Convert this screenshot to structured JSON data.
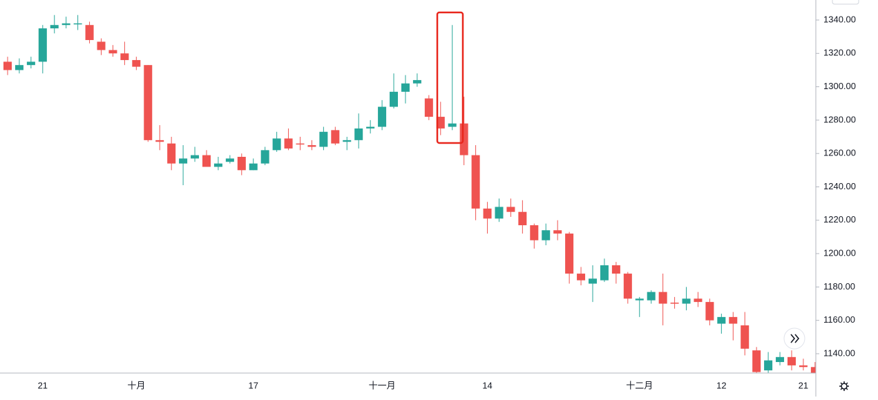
{
  "chart_data": {
    "type": "candlestick",
    "categories": [
      null,
      null,
      null,
      "21",
      null,
      null,
      null,
      null,
      null,
      null,
      null,
      "十月",
      null,
      null,
      null,
      null,
      null,
      null,
      null,
      null,
      null,
      "17",
      null,
      null,
      null,
      null,
      null,
      null,
      null,
      null,
      null,
      null,
      "十一月",
      null,
      null,
      null,
      null,
      null,
      null,
      null,
      null,
      "14",
      null,
      null,
      null,
      null,
      null,
      null,
      null,
      null,
      null,
      null,
      null,
      null,
      "十二月",
      null,
      null,
      null,
      null,
      null,
      null,
      "12",
      null,
      null,
      null,
      null,
      null,
      null,
      "21",
      null
    ],
    "open": [
      1315,
      1310,
      1313,
      1315,
      1335,
      1337,
      1337.5,
      1337,
      1327,
      1322,
      1320,
      1316,
      1313,
      1268,
      1266,
      1254,
      1257,
      1259,
      1252,
      1255,
      1258,
      1250,
      1254,
      1262,
      1269,
      1266,
      1265,
      1264,
      1274,
      1267,
      1268,
      1275,
      1276,
      1288,
      1297,
      1302,
      1293,
      1282,
      1276,
      1278,
      1259,
      1227,
      1221,
      1228,
      1225,
      1217,
      1208,
      1214,
      1212,
      1188,
      1182,
      1184,
      1193,
      1188,
      1172,
      1172,
      1177,
      1170.6,
      1170,
      1173,
      1171,
      1158,
      1162,
      1157,
      1142,
      1130,
      1135,
      1138,
      1133,
      1132
    ],
    "high": [
      1318,
      1317,
      1318,
      1337,
      1343,
      1342,
      1343,
      1339,
      1329,
      1325,
      1327,
      1318,
      1313,
      1277,
      1270,
      1265,
      1264,
      1262,
      1258,
      1259,
      1260,
      1257,
      1264,
      1273,
      1275,
      1270,
      1268,
      1276,
      1276,
      1270,
      1284,
      1280,
      1292,
      1308,
      1307,
      1308,
      1295,
      1291,
      1337,
      1294,
      1265,
      1231,
      1233,
      1233,
      1232,
      1218,
      1218,
      1220,
      1213,
      1192,
      1193,
      1197,
      1195,
      1189,
      1174,
      1178,
      1188,
      1174,
      1180,
      1177,
      1173,
      1164,
      1165,
      1165,
      1144,
      1141,
      1141,
      1142,
      1137,
      1135
    ],
    "low": [
      1307,
      1308,
      1311,
      1308,
      1332,
      1335,
      1334,
      1326,
      1319,
      1318,
      1313,
      1310,
      1267,
      1262,
      1250,
      1241,
      1255,
      1252,
      1250,
      1254,
      1247,
      1250,
      1253,
      1261,
      1262,
      1262,
      1262,
      1262,
      1265,
      1262,
      1263,
      1272,
      1274,
      1287,
      1290,
      1300,
      1280,
      1271,
      1274,
      1253,
      1220,
      1212,
      1219,
      1222,
      1212,
      1203,
      1205,
      1208,
      1182,
      1181,
      1171,
      1183,
      1182,
      1170,
      1162,
      1170,
      1157,
      1167,
      1166,
      1168,
      1157,
      1152,
      1148,
      1139,
      1125,
      1128,
      1133,
      1130,
      1130,
      1126
    ],
    "close": [
      1310,
      1313,
      1315,
      1335,
      1337,
      1338,
      1338,
      1328,
      1322,
      1320,
      1316,
      1312,
      1268,
      1267,
      1254,
      1257,
      1259,
      1252,
      1254,
      1257,
      1250,
      1254,
      1262,
      1269,
      1263,
      1265.5,
      1264,
      1273,
      1266,
      1268,
      1275,
      1276,
      1288,
      1297,
      1302,
      1304,
      1282,
      1275,
      1278,
      1259,
      1227,
      1221,
      1228,
      1225,
      1217,
      1208,
      1214,
      1212,
      1188,
      1184,
      1185,
      1193,
      1188,
      1173,
      1173,
      1177,
      1170,
      1170,
      1173,
      1171,
      1160,
      1162,
      1158,
      1143,
      1129,
      1136,
      1138,
      1133,
      1132,
      1128
    ],
    "up_color": "#26a69a",
    "down_color": "#ef5350",
    "ylim": [
      1128.4,
      1352
    ],
    "yticks": [
      {
        "value": 1140,
        "label": "1140.00"
      },
      {
        "value": 1160,
        "label": "1160.00"
      },
      {
        "value": 1180,
        "label": "1180.00"
      },
      {
        "value": 1200,
        "label": "1200.00"
      },
      {
        "value": 1220,
        "label": "1220.00"
      },
      {
        "value": 1240,
        "label": "1240.00"
      },
      {
        "value": 1260,
        "label": "1260.00"
      },
      {
        "value": 1280,
        "label": "1280.00"
      },
      {
        "value": 1300,
        "label": "1300.00"
      },
      {
        "value": 1320,
        "label": "1320.00"
      },
      {
        "value": 1340,
        "label": "1340.00"
      }
    ]
  }
}
